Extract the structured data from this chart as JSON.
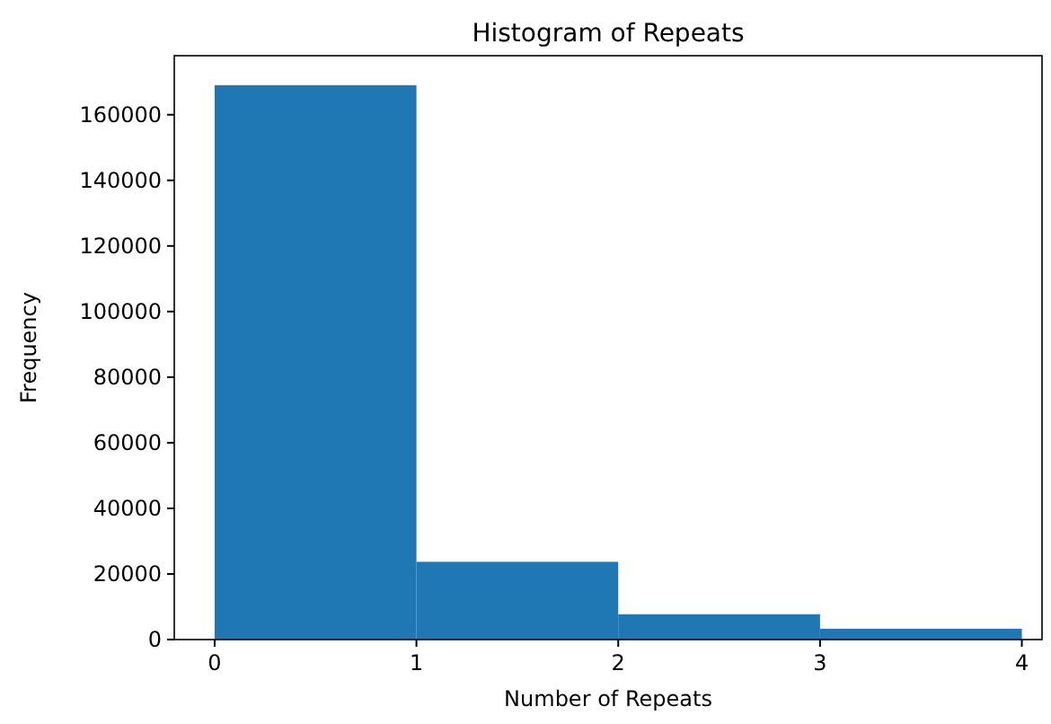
{
  "chart_data": {
    "type": "histogram",
    "title": "Histogram of Repeats",
    "xlabel": "Number of Repeats",
    "ylabel": "Frequency",
    "bins": [
      0,
      1,
      2,
      3,
      4
    ],
    "values": [
      169000,
      23700,
      7700,
      3300
    ],
    "color": "#1f77b4",
    "xlim": [
      -0.2,
      4.1
    ],
    "xticks": [
      0,
      1,
      2,
      3,
      4
    ],
    "ylim": [
      0,
      178000
    ],
    "yticks": [
      0,
      20000,
      40000,
      60000,
      80000,
      100000,
      120000,
      140000,
      160000
    ]
  }
}
